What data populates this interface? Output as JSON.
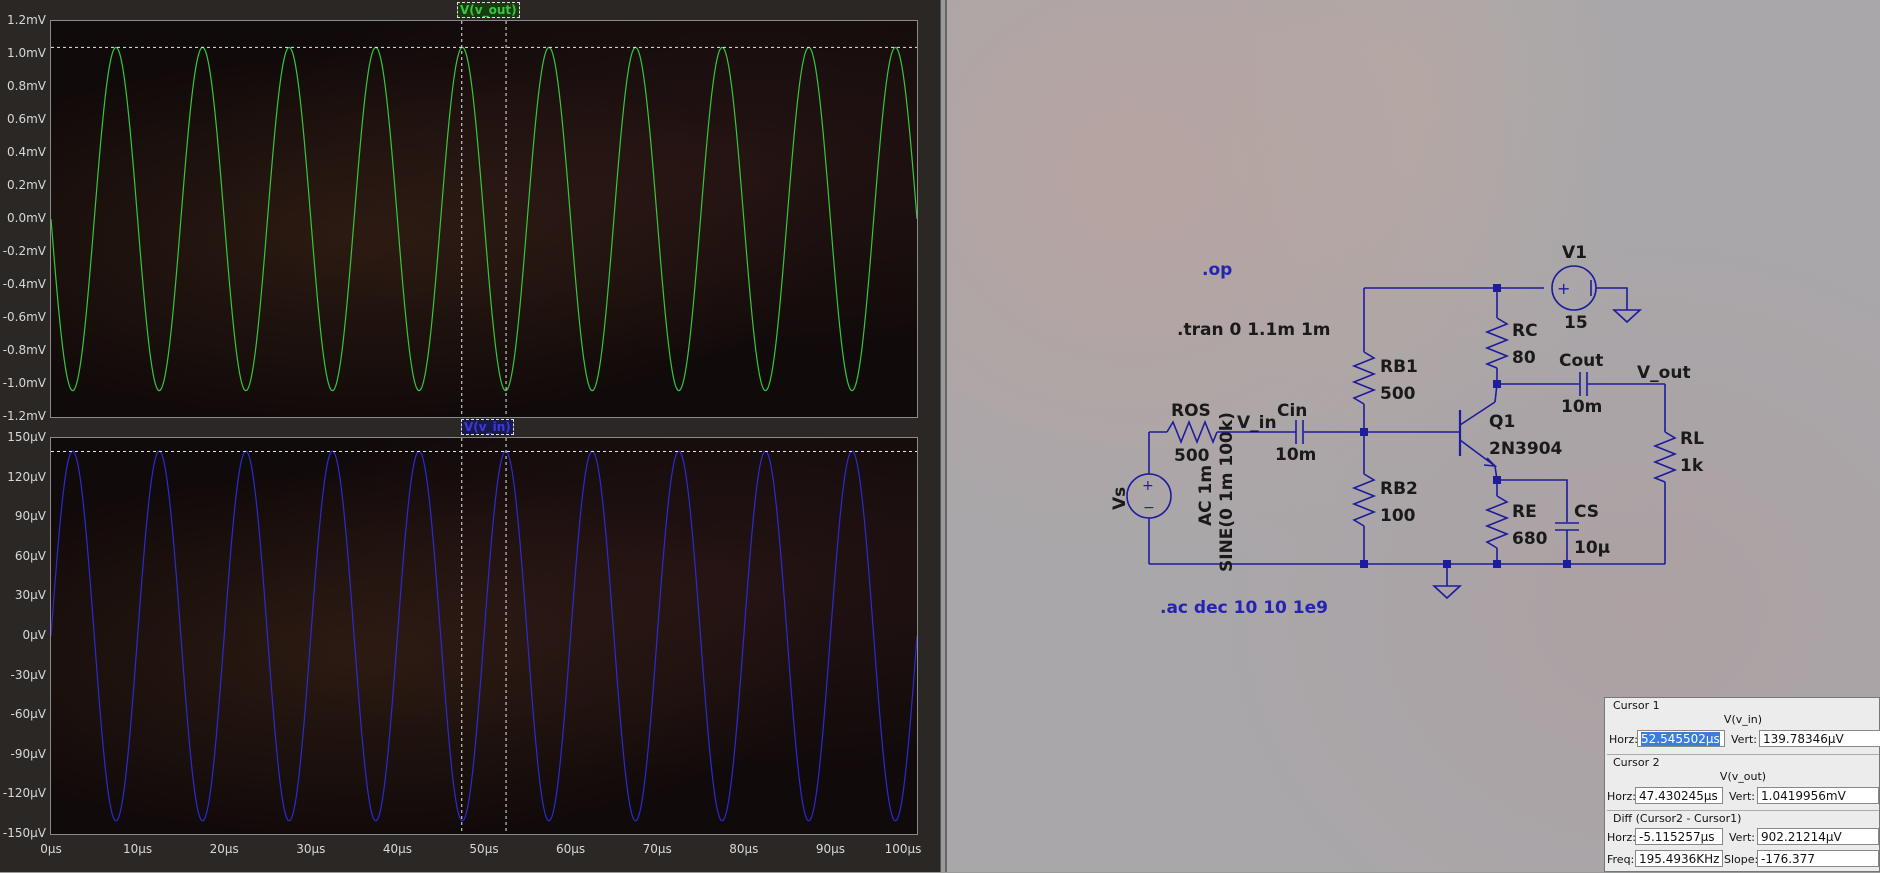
{
  "waveform_viewer": {
    "top_pane": {
      "trace_label": "V(v_out)",
      "trace_color": "#36c83a",
      "y_ticks": [
        "1.2mV",
        "1.0mV",
        "0.8mV",
        "0.6mV",
        "0.4mV",
        "0.2mV",
        "0.0mV",
        "-0.2mV",
        "-0.4mV",
        "-0.6mV",
        "-0.8mV",
        "-1.0mV",
        "-1.2mV"
      ]
    },
    "bottom_pane": {
      "trace_label": "V(v_in)",
      "trace_color": "#2b2bd0",
      "y_ticks": [
        "150µV",
        "120µV",
        "90µV",
        "60µV",
        "30µV",
        "0µV",
        "-30µV",
        "-60µV",
        "-90µV",
        "-120µV",
        "-150µV"
      ]
    },
    "x_ticks": [
      "0µs",
      "10µs",
      "20µs",
      "30µs",
      "40µs",
      "50µs",
      "60µs",
      "70µs",
      "80µs",
      "90µs",
      "100µs"
    ]
  },
  "chart_data": [
    {
      "type": "line",
      "series": [
        {
          "name": "V(v_out)",
          "amplitude": 1.04,
          "frequency_khz": 100,
          "phase": "starts at 0, goes negative"
        }
      ],
      "x_range_us": [
        0,
        100
      ],
      "ylim": [
        -1.2,
        1.2
      ],
      "yunit": "mV",
      "cursor_level": 1.04
    },
    {
      "type": "line",
      "series": [
        {
          "name": "V(v_in)",
          "amplitude": 140,
          "frequency_khz": 100,
          "phase": "starts at 0, goes positive"
        }
      ],
      "x_range_us": [
        0,
        100
      ],
      "ylim": [
        -150,
        150
      ],
      "yunit": "µV",
      "cursor_level": 139.78
    }
  ],
  "cursors": {
    "cursor1_time_us": 52.5455,
    "cursor2_time_us": 47.4302
  },
  "schematic": {
    "directives": {
      "op": ".op",
      "tran": ".tran 0 1.1m 1m",
      "ac": ".ac dec 10 10 1e9"
    },
    "components": {
      "V1": {
        "name": "V1",
        "value": "15"
      },
      "RC": {
        "name": "RC",
        "value": "80"
      },
      "Cout": {
        "name": "Cout",
        "value": "10m"
      },
      "RB1": {
        "name": "RB1",
        "value": "500"
      },
      "ROS": {
        "name": "ROS",
        "value": "500"
      },
      "Cin": {
        "name": "Cin",
        "value": "10m"
      },
      "Q1": {
        "name": "Q1",
        "value": "2N3904"
      },
      "RL": {
        "name": "RL",
        "value": "1k"
      },
      "RB2": {
        "name": "RB2",
        "value": "100"
      },
      "RE": {
        "name": "RE",
        "value": "680"
      },
      "CS": {
        "name": "CS",
        "value": "10µ"
      },
      "Vs": {
        "name": "Vs",
        "ac": "AC 1m",
        "sine": "SINE(0 1m 100k)"
      }
    },
    "nets": {
      "vin": "V_in",
      "vout": "V_out"
    }
  },
  "cursor_panel": {
    "cursor1": {
      "title": "Cursor 1",
      "signal": "V(v_in)",
      "horz_label": "Horz:",
      "horz": "52.545502µs",
      "vert_label": "Vert:",
      "vert": "139.78346µV"
    },
    "cursor2": {
      "title": "Cursor 2",
      "signal": "V(v_out)",
      "horz_label": "Horz:",
      "horz": "47.430245µs",
      "vert_label": "Vert:",
      "vert": "1.0419956mV"
    },
    "diff": {
      "title": "Diff (Cursor2 - Cursor1)",
      "horz_label": "Horz:",
      "horz": "-5.115257µs",
      "vert_label": "Vert:",
      "vert": "902.21214µV",
      "freq_label": "Freq:",
      "freq": "195.4936KHz",
      "slope_label": "Slope:",
      "slope": "-176.377"
    }
  }
}
